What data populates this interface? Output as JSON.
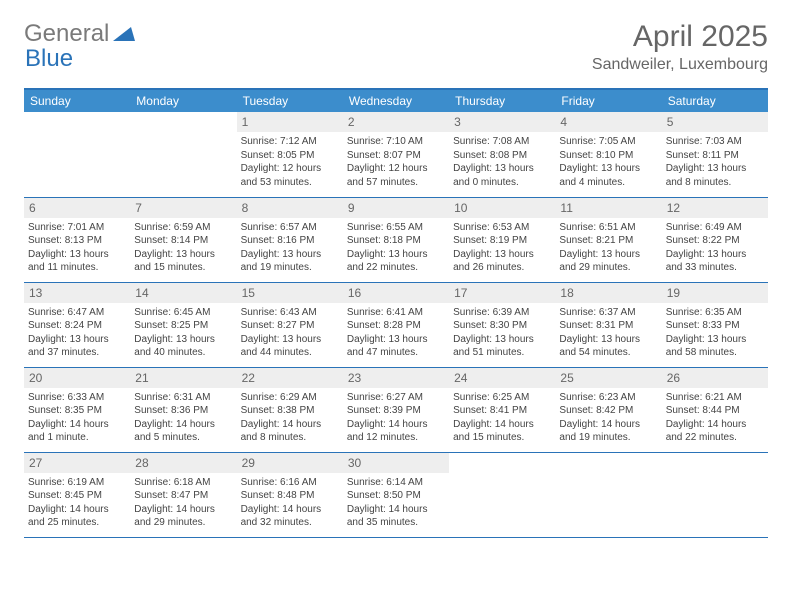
{
  "logo": {
    "general": "General",
    "blue": "Blue"
  },
  "title": "April 2025",
  "location": "Sandweiler, Luxembourg",
  "colors": {
    "header_bg": "#3c8dcc",
    "border": "#2a73b8",
    "daynum_bg": "#eeeeee",
    "text": "#444444",
    "title": "#666666"
  },
  "day_headers": [
    "Sunday",
    "Monday",
    "Tuesday",
    "Wednesday",
    "Thursday",
    "Friday",
    "Saturday"
  ],
  "weeks": [
    [
      null,
      null,
      {
        "n": "1",
        "sr": "Sunrise: 7:12 AM",
        "ss": "Sunset: 8:05 PM",
        "dl": "Daylight: 12 hours and 53 minutes."
      },
      {
        "n": "2",
        "sr": "Sunrise: 7:10 AM",
        "ss": "Sunset: 8:07 PM",
        "dl": "Daylight: 12 hours and 57 minutes."
      },
      {
        "n": "3",
        "sr": "Sunrise: 7:08 AM",
        "ss": "Sunset: 8:08 PM",
        "dl": "Daylight: 13 hours and 0 minutes."
      },
      {
        "n": "4",
        "sr": "Sunrise: 7:05 AM",
        "ss": "Sunset: 8:10 PM",
        "dl": "Daylight: 13 hours and 4 minutes."
      },
      {
        "n": "5",
        "sr": "Sunrise: 7:03 AM",
        "ss": "Sunset: 8:11 PM",
        "dl": "Daylight: 13 hours and 8 minutes."
      }
    ],
    [
      {
        "n": "6",
        "sr": "Sunrise: 7:01 AM",
        "ss": "Sunset: 8:13 PM",
        "dl": "Daylight: 13 hours and 11 minutes."
      },
      {
        "n": "7",
        "sr": "Sunrise: 6:59 AM",
        "ss": "Sunset: 8:14 PM",
        "dl": "Daylight: 13 hours and 15 minutes."
      },
      {
        "n": "8",
        "sr": "Sunrise: 6:57 AM",
        "ss": "Sunset: 8:16 PM",
        "dl": "Daylight: 13 hours and 19 minutes."
      },
      {
        "n": "9",
        "sr": "Sunrise: 6:55 AM",
        "ss": "Sunset: 8:18 PM",
        "dl": "Daylight: 13 hours and 22 minutes."
      },
      {
        "n": "10",
        "sr": "Sunrise: 6:53 AM",
        "ss": "Sunset: 8:19 PM",
        "dl": "Daylight: 13 hours and 26 minutes."
      },
      {
        "n": "11",
        "sr": "Sunrise: 6:51 AM",
        "ss": "Sunset: 8:21 PM",
        "dl": "Daylight: 13 hours and 29 minutes."
      },
      {
        "n": "12",
        "sr": "Sunrise: 6:49 AM",
        "ss": "Sunset: 8:22 PM",
        "dl": "Daylight: 13 hours and 33 minutes."
      }
    ],
    [
      {
        "n": "13",
        "sr": "Sunrise: 6:47 AM",
        "ss": "Sunset: 8:24 PM",
        "dl": "Daylight: 13 hours and 37 minutes."
      },
      {
        "n": "14",
        "sr": "Sunrise: 6:45 AM",
        "ss": "Sunset: 8:25 PM",
        "dl": "Daylight: 13 hours and 40 minutes."
      },
      {
        "n": "15",
        "sr": "Sunrise: 6:43 AM",
        "ss": "Sunset: 8:27 PM",
        "dl": "Daylight: 13 hours and 44 minutes."
      },
      {
        "n": "16",
        "sr": "Sunrise: 6:41 AM",
        "ss": "Sunset: 8:28 PM",
        "dl": "Daylight: 13 hours and 47 minutes."
      },
      {
        "n": "17",
        "sr": "Sunrise: 6:39 AM",
        "ss": "Sunset: 8:30 PM",
        "dl": "Daylight: 13 hours and 51 minutes."
      },
      {
        "n": "18",
        "sr": "Sunrise: 6:37 AM",
        "ss": "Sunset: 8:31 PM",
        "dl": "Daylight: 13 hours and 54 minutes."
      },
      {
        "n": "19",
        "sr": "Sunrise: 6:35 AM",
        "ss": "Sunset: 8:33 PM",
        "dl": "Daylight: 13 hours and 58 minutes."
      }
    ],
    [
      {
        "n": "20",
        "sr": "Sunrise: 6:33 AM",
        "ss": "Sunset: 8:35 PM",
        "dl": "Daylight: 14 hours and 1 minute."
      },
      {
        "n": "21",
        "sr": "Sunrise: 6:31 AM",
        "ss": "Sunset: 8:36 PM",
        "dl": "Daylight: 14 hours and 5 minutes."
      },
      {
        "n": "22",
        "sr": "Sunrise: 6:29 AM",
        "ss": "Sunset: 8:38 PM",
        "dl": "Daylight: 14 hours and 8 minutes."
      },
      {
        "n": "23",
        "sr": "Sunrise: 6:27 AM",
        "ss": "Sunset: 8:39 PM",
        "dl": "Daylight: 14 hours and 12 minutes."
      },
      {
        "n": "24",
        "sr": "Sunrise: 6:25 AM",
        "ss": "Sunset: 8:41 PM",
        "dl": "Daylight: 14 hours and 15 minutes."
      },
      {
        "n": "25",
        "sr": "Sunrise: 6:23 AM",
        "ss": "Sunset: 8:42 PM",
        "dl": "Daylight: 14 hours and 19 minutes."
      },
      {
        "n": "26",
        "sr": "Sunrise: 6:21 AM",
        "ss": "Sunset: 8:44 PM",
        "dl": "Daylight: 14 hours and 22 minutes."
      }
    ],
    [
      {
        "n": "27",
        "sr": "Sunrise: 6:19 AM",
        "ss": "Sunset: 8:45 PM",
        "dl": "Daylight: 14 hours and 25 minutes."
      },
      {
        "n": "28",
        "sr": "Sunrise: 6:18 AM",
        "ss": "Sunset: 8:47 PM",
        "dl": "Daylight: 14 hours and 29 minutes."
      },
      {
        "n": "29",
        "sr": "Sunrise: 6:16 AM",
        "ss": "Sunset: 8:48 PM",
        "dl": "Daylight: 14 hours and 32 minutes."
      },
      {
        "n": "30",
        "sr": "Sunrise: 6:14 AM",
        "ss": "Sunset: 8:50 PM",
        "dl": "Daylight: 14 hours and 35 minutes."
      },
      null,
      null,
      null
    ]
  ]
}
